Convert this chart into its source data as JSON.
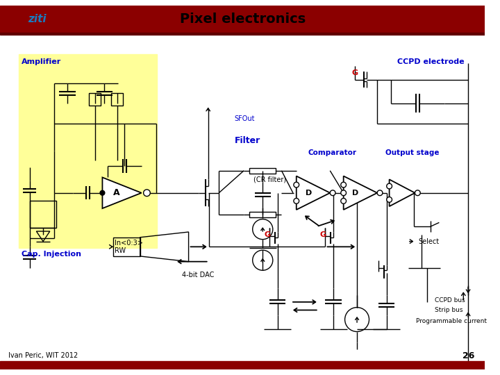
{
  "title": "Pixel electronics",
  "bg_color": "#ffffff",
  "header_bar_color": "#8B0000",
  "title_fontsize": 14,
  "footer_text": "Ivan Peric, WIT 2012",
  "footer_page": "26",
  "blue_label_color": "#0000CC",
  "red_label_color": "#CC0000",
  "line_color": "#000000",
  "amp_bg_color": "#FFFF99",
  "ziti_text_color": "#1a7abf"
}
